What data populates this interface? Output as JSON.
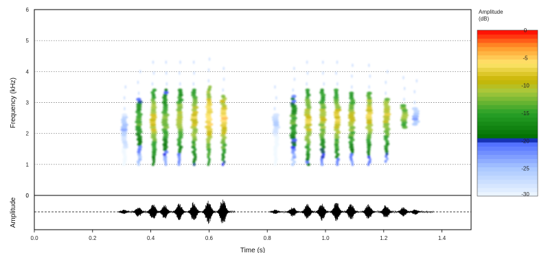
{
  "chart_data": [
    {
      "type": "heatmap",
      "subtype": "spectrogram",
      "title": "",
      "xlabel": "",
      "ylabel": "Frequency (kHz)",
      "xlim": [
        0,
        1.5
      ],
      "ylim": [
        0,
        6
      ],
      "yticks": [
        "0",
        "1",
        "2",
        "3",
        "4",
        "5",
        "6"
      ],
      "grid": "horizontal dotted at 1-5 kHz",
      "colorbar": {
        "title_line1": "Amplitude",
        "title_line2": "(dB)",
        "range": [
          -30,
          0
        ],
        "ticks": [
          "0",
          "-5",
          "-10",
          "-15",
          "-20",
          "-25",
          "-30"
        ],
        "colors_top_to_bottom": [
          "#ff0000",
          "#ff9900",
          "#ffe066",
          "#c8b400",
          "#6fbf2a",
          "#1e8a1e",
          "#2626ff",
          "#99bbff",
          "#e8f2ff"
        ]
      },
      "phrases": [
        {
          "note_times_s": [
            0.31,
            0.36,
            0.41,
            0.45,
            0.5,
            0.55,
            0.6,
            0.65
          ],
          "note_peak_dB": [
            -22,
            -12,
            -6,
            -10,
            -8,
            -6,
            -3,
            -4
          ],
          "band_low_kHz": [
            1.0,
            1.0,
            1.0,
            1.0,
            1.0,
            1.0,
            1.0,
            1.0
          ],
          "band_high_kHz": [
            2.6,
            3.1,
            3.4,
            3.4,
            3.4,
            3.4,
            3.5,
            3.2
          ],
          "dominant_kHz": [
            2.2,
            2.4,
            2.4,
            2.4,
            2.5,
            2.5,
            2.5,
            2.5
          ]
        },
        {
          "note_times_s": [
            0.83,
            0.89,
            0.94,
            0.99,
            1.04,
            1.09,
            1.15,
            1.21,
            1.27,
            1.31
          ],
          "note_peak_dB": [
            -24,
            -12,
            -6,
            -8,
            -6,
            -8,
            -6,
            -7,
            -10,
            -22
          ],
          "band_low_kHz": [
            1.0,
            1.0,
            1.0,
            1.0,
            1.0,
            1.0,
            1.0,
            1.1,
            2.2,
            2.3
          ],
          "band_high_kHz": [
            2.6,
            3.2,
            3.4,
            3.4,
            3.4,
            3.3,
            3.3,
            3.1,
            2.9,
            2.8
          ],
          "dominant_kHz": [
            2.4,
            2.4,
            2.4,
            2.5,
            2.5,
            2.5,
            2.6,
            2.6,
            2.6,
            2.5
          ]
        }
      ]
    },
    {
      "type": "line",
      "subtype": "waveform",
      "title": "",
      "xlabel": "Time (s)",
      "ylabel": "Amplitude",
      "xlim": [
        0,
        1.5
      ],
      "xticks": [
        "0.0",
        "0.2",
        "0.4",
        "0.6",
        "0.8",
        "1.0",
        "1.2",
        "1.4"
      ],
      "yticks": [
        "0"
      ],
      "note_times_s": [
        0.31,
        0.36,
        0.41,
        0.45,
        0.5,
        0.55,
        0.6,
        0.65,
        0.83,
        0.89,
        0.94,
        0.99,
        1.04,
        1.09,
        1.15,
        1.21,
        1.27,
        1.31
      ],
      "note_relative_amplitude": [
        0.15,
        0.35,
        0.55,
        0.5,
        0.6,
        0.7,
        0.85,
        0.9,
        0.15,
        0.35,
        0.55,
        0.6,
        0.7,
        0.6,
        0.55,
        0.5,
        0.35,
        0.2
      ]
    }
  ]
}
